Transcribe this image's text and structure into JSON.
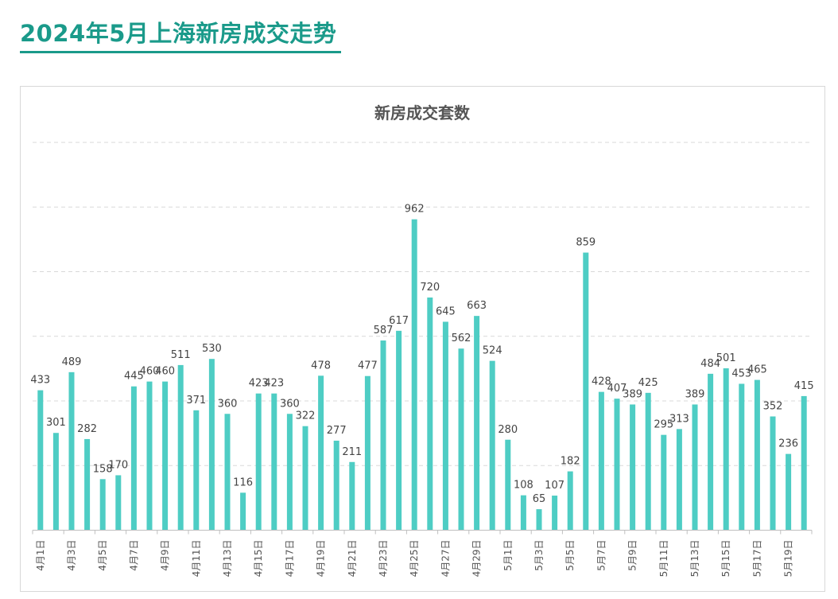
{
  "page_title": "2024年5月上海新房成交走势",
  "colors": {
    "title": "#1a9a8a",
    "bar": "#4ecdc4",
    "grid": "#d9d9d9",
    "axis": "#bfbfbf"
  },
  "chart_data": {
    "type": "bar",
    "title": "新房成交套数",
    "xlabel": "",
    "ylabel": "",
    "ylim": [
      0,
      1200
    ],
    "grid": true,
    "legend": "none",
    "categories": [
      "4月1日",
      "4月2日",
      "4月3日",
      "4月4日",
      "4月5日",
      "4月6日",
      "4月7日",
      "4月8日",
      "4月9日",
      "4月10日",
      "4月11日",
      "4月12日",
      "4月13日",
      "4月14日",
      "4月15日",
      "4月16日",
      "4月17日",
      "4月18日",
      "4月19日",
      "4月20日",
      "4月21日",
      "4月22日",
      "4月23日",
      "4月24日",
      "4月25日",
      "4月26日",
      "4月27日",
      "4月28日",
      "4月29日",
      "4月30日",
      "5月1日",
      "5月2日",
      "5月3日",
      "5月4日",
      "5月5日",
      "5月6日",
      "5月7日",
      "5月8日",
      "5月9日",
      "5月10日",
      "5月11日",
      "5月12日",
      "5月13日",
      "5月14日",
      "5月15日",
      "5月16日",
      "5月17日",
      "5月18日",
      "5月19日",
      "5月20日"
    ],
    "tick_labels": [
      "4月1日",
      "4月3日",
      "4月5日",
      "4月7日",
      "4月9日",
      "4月11日",
      "4月13日",
      "4月15日",
      "4月17日",
      "4月19日",
      "4月21日",
      "4月23日",
      "4月25日",
      "4月27日",
      "4月29日",
      "5月1日",
      "5月3日",
      "5月5日",
      "5月7日",
      "5月9日",
      "5月11日",
      "5月13日",
      "5月15日",
      "5月17日",
      "5月19日"
    ],
    "values": [
      433,
      301,
      489,
      282,
      158,
      170,
      445,
      460,
      460,
      511,
      371,
      530,
      360,
      116,
      423,
      423,
      360,
      322,
      478,
      277,
      211,
      477,
      587,
      617,
      962,
      720,
      645,
      562,
      663,
      524,
      280,
      108,
      65,
      107,
      182,
      859,
      428,
      407,
      389,
      425,
      295,
      313,
      389,
      484,
      501,
      453,
      465,
      352,
      236,
      415
    ]
  }
}
